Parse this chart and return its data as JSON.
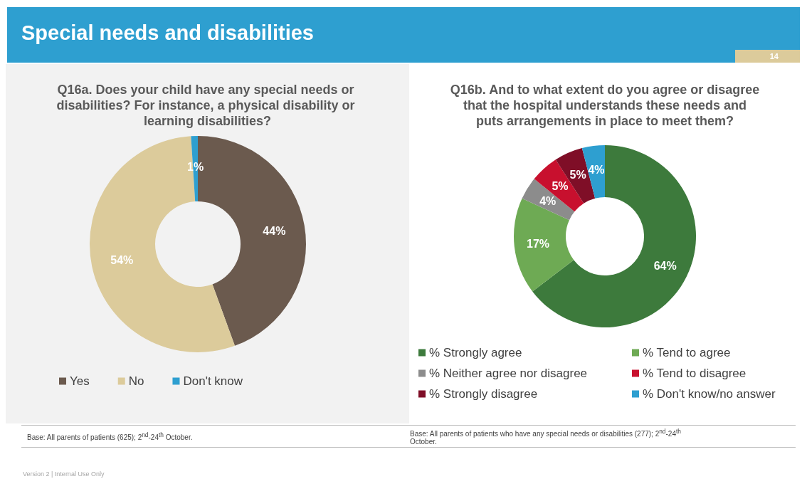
{
  "chart_data": [
    {
      "type": "donut",
      "title": "Q16a. Does your child have any special needs or disabilities? For instance, a physical disability or learning disabilities?",
      "categories": [
        "Yes",
        "No",
        "Don't know"
      ],
      "values": [
        44,
        54,
        1
      ],
      "value_labels": [
        "44%",
        "54%",
        "1%"
      ],
      "colors": [
        "#6b5a4e",
        "#dccb9b",
        "#2e9fd0"
      ],
      "legend": "bottom",
      "annotations": [
        "Special needs and disabilities",
        "14",
        "Base: All parents of patients (625); 2$^{nd}$-24$^{th}$ October.",
        "Version 2 | Internal Use Only"
      ]
    },
    {
      "type": "donut",
      "title": "Q16b. And to what extent do you agree or disagree that the hospital understands these needs and puts arrangements in place to meet them?",
      "categories": [
        "% Strongly agree",
        "% Tend to agree",
        "% Neither agree nor disagree",
        "% Tend to disagree",
        "% Strongly disagree",
        "% Don't know/no answer"
      ],
      "values": [
        64,
        17,
        4,
        5,
        5,
        4
      ],
      "value_labels": [
        "64%",
        "17%",
        "4%",
        "5%",
        "5%",
        "4%"
      ],
      "colors": [
        "#3d7a3c",
        "#6eaa54",
        "#8c8c8c",
        "#c8102e",
        "#7f0e27",
        "#2e9fd0"
      ],
      "legend": "bottom",
      "annotations": [
        "Base: All parents of patients who have any special needs or disabilities (277); 2$^{nd}$-24$^{th}$ October."
      ]
    }
  ]
}
